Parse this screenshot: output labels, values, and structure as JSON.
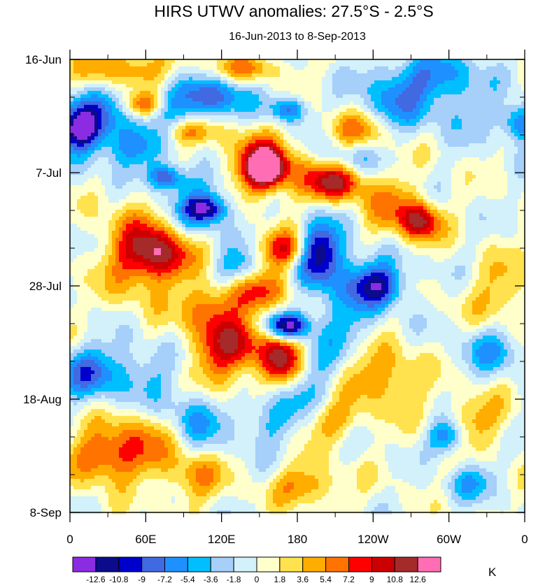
{
  "chart_data": {
    "type": "heatmap",
    "title": "HIRS UTWV anomalies: 27.5°S - 2.5°S",
    "subtitle": "16-Jun-2013 to 8-Sep-2013",
    "x_ticks": [
      "0",
      "60E",
      "120E",
      "180",
      "120W",
      "60W",
      "0"
    ],
    "y_ticks": [
      "16-Jun",
      "7-Jul",
      "28-Jul",
      "18-Aug",
      "8-Sep"
    ],
    "xlim": [
      0,
      360
    ],
    "ylim": [
      "16-Jun-2013",
      "8-Sep-2013"
    ],
    "colorbar": {
      "unit": "K",
      "levels": [
        "-12.6",
        "-10.8",
        "-9",
        "-7.2",
        "-5.4",
        "-3.6",
        "-1.8",
        "0",
        "1.8",
        "3.6",
        "5.4",
        "7.2",
        "9",
        "10.8",
        "12.6"
      ],
      "colors": [
        "#8b2be2",
        "#0b0b8c",
        "#0000cd",
        "#4169e1",
        "#1e90ff",
        "#00bfff",
        "#a6cffa",
        "#d2f1fa",
        "#ffffcc",
        "#ffe24d",
        "#ffae00",
        "#ff7300",
        "#ff0000",
        "#cc0000",
        "#a52a2a",
        "#ff6eb4"
      ]
    }
  }
}
